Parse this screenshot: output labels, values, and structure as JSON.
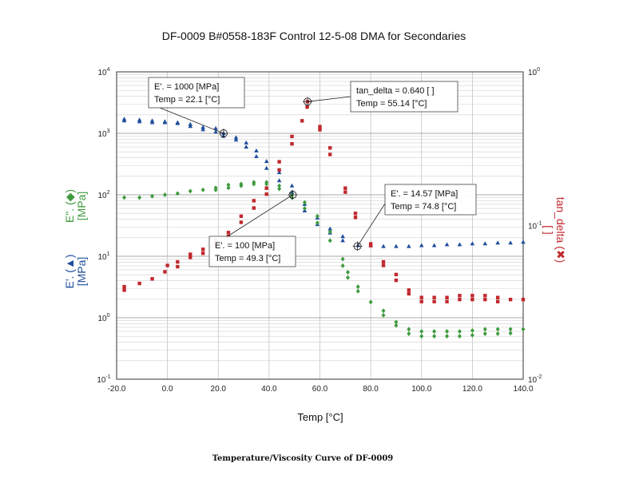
{
  "title": "DF-0009  B#0558-183F  Control 12-5-08 DMA for Secondaries",
  "caption": "Temperature/Viscosity Curve of DF-0009",
  "chart_data": {
    "type": "scatter",
    "xlabel": "Temp [°C]",
    "xlim": [
      -20,
      140
    ],
    "x_ticks": [
      "-20.0",
      "0.0",
      "20.0",
      "40.0",
      "60.0",
      "80.0",
      "100.0",
      "120.0",
      "140.0"
    ],
    "y_left": {
      "scale": "log",
      "lim": [
        0.1,
        10000
      ],
      "labels": [
        {
          "parts": [
            "E'. (",
            "▲",
            ")"
          ],
          "unit": "[MPa]",
          "color": "#1f4e9c"
        },
        {
          "parts": [
            "E\". (",
            "◆",
            ")"
          ],
          "unit": "[MPa]",
          "color": "#3f9b3f"
        }
      ],
      "tick_labels": [
        {
          "base": "10",
          "exp": "-1"
        },
        {
          "base": "10",
          "exp": "0"
        },
        {
          "base": "10",
          "exp": "1"
        },
        {
          "base": "10",
          "exp": "2"
        },
        {
          "base": "10",
          "exp": "3"
        },
        {
          "base": "10",
          "exp": "4"
        }
      ]
    },
    "y_right": {
      "scale": "log",
      "lim": [
        0.01,
        1
      ],
      "label_parts": [
        "tan_delta (",
        "✖",
        ")"
      ],
      "unit": "[ ]",
      "color": "#c0282d",
      "tick_labels": [
        {
          "base": "10",
          "exp": "-2"
        },
        {
          "base": "10",
          "exp": "-1"
        },
        {
          "base": "10",
          "exp": "0"
        }
      ]
    },
    "series": [
      {
        "key": "E_storage",
        "axis": "left",
        "marker": "triangle",
        "color": "#1f4e9c",
        "points": [
          [
            -17,
            1700
          ],
          [
            -17,
            1600
          ],
          [
            -11,
            1650
          ],
          [
            -11,
            1550
          ],
          [
            -6,
            1600
          ],
          [
            -6,
            1500
          ],
          [
            -1,
            1550
          ],
          [
            -1,
            1500
          ],
          [
            4,
            1500
          ],
          [
            4,
            1450
          ],
          [
            9,
            1400
          ],
          [
            9,
            1300
          ],
          [
            14,
            1250
          ],
          [
            14,
            1150
          ],
          [
            19,
            1200
          ],
          [
            19,
            1050
          ],
          [
            22.1,
            1000
          ],
          [
            22,
            900
          ],
          [
            27,
            850
          ],
          [
            27,
            780
          ],
          [
            31,
            700
          ],
          [
            31,
            600
          ],
          [
            35,
            520
          ],
          [
            35,
            420
          ],
          [
            39,
            350
          ],
          [
            39,
            270
          ],
          [
            44,
            230
          ],
          [
            44,
            170
          ],
          [
            49,
            140
          ],
          [
            49,
            110
          ],
          [
            54,
            70
          ],
          [
            54,
            55
          ],
          [
            59,
            42
          ],
          [
            59,
            33
          ],
          [
            64,
            28
          ],
          [
            64,
            24
          ],
          [
            69,
            21
          ],
          [
            69,
            18
          ],
          [
            75,
            15
          ],
          [
            80,
            15
          ],
          [
            85,
            14.5
          ],
          [
            90,
            14.5
          ],
          [
            95,
            14.5
          ],
          [
            100,
            15
          ],
          [
            105,
            15
          ],
          [
            110,
            15.5
          ],
          [
            115,
            15.5
          ],
          [
            120,
            16
          ],
          [
            125,
            16
          ],
          [
            130,
            16.5
          ],
          [
            135,
            16.5
          ],
          [
            140,
            17
          ]
        ]
      },
      {
        "key": "E_loss",
        "axis": "left",
        "marker": "diamond",
        "color": "#3f9b3f",
        "points": [
          [
            -17,
            90
          ],
          [
            -11,
            90
          ],
          [
            -6,
            95
          ],
          [
            -1,
            100
          ],
          [
            4,
            105
          ],
          [
            9,
            115
          ],
          [
            14,
            120
          ],
          [
            19,
            130
          ],
          [
            19,
            120
          ],
          [
            24,
            145
          ],
          [
            24,
            130
          ],
          [
            29,
            150
          ],
          [
            29,
            140
          ],
          [
            34,
            160
          ],
          [
            34,
            150
          ],
          [
            39,
            160
          ],
          [
            39,
            150
          ],
          [
            44,
            140
          ],
          [
            44,
            125
          ],
          [
            49,
            100
          ],
          [
            49,
            90
          ],
          [
            54,
            75
          ],
          [
            54,
            60
          ],
          [
            59,
            45
          ],
          [
            59,
            35
          ],
          [
            64,
            25
          ],
          [
            64,
            18
          ],
          [
            69,
            9
          ],
          [
            69,
            7
          ],
          [
            71,
            5.5
          ],
          [
            71,
            4.5
          ],
          [
            75,
            3.2
          ],
          [
            75,
            2.7
          ],
          [
            80,
            1.8
          ],
          [
            85,
            1.3
          ],
          [
            85,
            1.1
          ],
          [
            90,
            0.85
          ],
          [
            90,
            0.75
          ],
          [
            95,
            0.65
          ],
          [
            95,
            0.55
          ],
          [
            100,
            0.6
          ],
          [
            100,
            0.5
          ],
          [
            105,
            0.6
          ],
          [
            105,
            0.5
          ],
          [
            110,
            0.6
          ],
          [
            110,
            0.5
          ],
          [
            115,
            0.6
          ],
          [
            115,
            0.5
          ],
          [
            120,
            0.62
          ],
          [
            120,
            0.52
          ],
          [
            125,
            0.65
          ],
          [
            125,
            0.55
          ],
          [
            130,
            0.65
          ],
          [
            130,
            0.55
          ],
          [
            135,
            0.65
          ],
          [
            135,
            0.56
          ],
          [
            140,
            0.65
          ]
        ]
      },
      {
        "key": "tan_delta",
        "axis": "right",
        "marker": "square",
        "color": "#c0282d",
        "points": [
          [
            -17,
            0.04
          ],
          [
            -17,
            0.038
          ],
          [
            -11,
            0.042
          ],
          [
            -6,
            0.045
          ],
          [
            -1,
            0.05
          ],
          [
            0,
            0.055
          ],
          [
            4,
            0.058
          ],
          [
            4,
            0.054
          ],
          [
            9,
            0.065
          ],
          [
            9,
            0.062
          ],
          [
            14,
            0.07
          ],
          [
            14,
            0.066
          ],
          [
            19,
            0.08
          ],
          [
            19,
            0.075
          ],
          [
            24,
            0.09
          ],
          [
            24,
            0.085
          ],
          [
            29,
            0.115
          ],
          [
            29,
            0.105
          ],
          [
            34,
            0.145
          ],
          [
            34,
            0.13
          ],
          [
            39,
            0.175
          ],
          [
            39,
            0.16
          ],
          [
            44,
            0.26
          ],
          [
            44,
            0.23
          ],
          [
            49,
            0.38
          ],
          [
            49,
            0.34
          ],
          [
            53,
            0.48
          ],
          [
            55.14,
            0.64
          ],
          [
            55,
            0.59
          ],
          [
            60,
            0.44
          ],
          [
            60,
            0.42
          ],
          [
            64,
            0.32
          ],
          [
            64,
            0.29
          ],
          [
            70,
            0.175
          ],
          [
            70,
            0.165
          ],
          [
            74,
            0.12
          ],
          [
            74,
            0.113
          ],
          [
            80,
            0.076
          ],
          [
            80,
            0.074
          ],
          [
            85,
            0.058
          ],
          [
            85,
            0.055
          ],
          [
            90,
            0.048
          ],
          [
            90,
            0.044
          ],
          [
            95,
            0.038
          ],
          [
            95,
            0.036
          ],
          [
            100,
            0.034
          ],
          [
            100,
            0.032
          ],
          [
            105,
            0.034
          ],
          [
            105,
            0.032
          ],
          [
            110,
            0.034
          ],
          [
            110,
            0.032
          ],
          [
            115,
            0.035
          ],
          [
            115,
            0.033
          ],
          [
            120,
            0.035
          ],
          [
            120,
            0.033
          ],
          [
            125,
            0.035
          ],
          [
            125,
            0.033
          ],
          [
            130,
            0.034
          ],
          [
            130,
            0.032
          ],
          [
            135,
            0.033
          ],
          [
            140,
            0.033
          ]
        ]
      }
    ],
    "annotations": [
      {
        "line1": "E'. = 1000 [MPa]",
        "line2": "Temp = 22.1 [°C]",
        "x": 22.1,
        "y": 1000,
        "axis": "left"
      },
      {
        "line1": "tan_delta = 0.640 [ ]",
        "line2": "Temp = 55.14 [°C]",
        "x": 55.14,
        "y": 0.64,
        "axis": "right"
      },
      {
        "line1": "E'. = 100 [MPa]",
        "line2": "Temp = 49.3 [°C]",
        "x": 49.3,
        "y": 100,
        "axis": "left"
      },
      {
        "line1": "E'. = 14.57 [MPa]",
        "line2": "Temp = 74.8 [°C]",
        "x": 74.8,
        "y": 14.57,
        "axis": "left"
      }
    ]
  }
}
